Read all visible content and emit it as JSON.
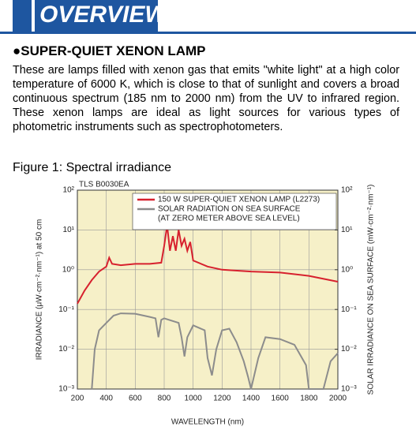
{
  "header": {
    "title": "OVERVIEW"
  },
  "section": {
    "heading": "●SUPER-QUIET XENON LAMP",
    "paragraph": "These are lamps filled with xenon gas that emits \"white light\" at a high color temperature of 6000 K, which is close to that of sunlight and covers a broad continuous spectrum (185 nm to 2000 nm) from the UV to infrared region. These xenon lamps are ideal as light sources for various types of photometric instruments such as spectrophotometers."
  },
  "figure": {
    "caption": "Figure 1: Spectral irradiance"
  },
  "chart_data": {
    "type": "line",
    "code": "TLS B0030EA",
    "x_label": "WAVELENGTH (nm)",
    "y_label": "IRRADIANCE (μW·cm⁻²·nm⁻¹) at 50 cm",
    "y2_label": "SOLAR IRRADIANCE ON SEA SURFACE (mW·cm⁻²·nm⁻¹)",
    "xlim": [
      200,
      2000
    ],
    "xticks": [
      200,
      400,
      600,
      800,
      1000,
      1200,
      1400,
      1600,
      1800,
      2000
    ],
    "ylim": [
      0.001,
      100
    ],
    "y_log": true,
    "yticks": [
      {
        "value": 100,
        "label": "10²"
      },
      {
        "value": 10,
        "label": "10¹"
      },
      {
        "value": 1,
        "label": "10⁰"
      },
      {
        "value": 0.1,
        "label": "10⁻¹"
      },
      {
        "value": 0.01,
        "label": "10⁻²"
      },
      {
        "value": 0.001,
        "label": "10⁻³"
      }
    ],
    "y2lim": [
      0.001,
      100
    ],
    "y2ticks": [
      {
        "value": 100,
        "label": "10²"
      },
      {
        "value": 10,
        "label": "10¹"
      },
      {
        "value": 1,
        "label": "10⁰"
      },
      {
        "value": 0.1,
        "label": "10⁻¹"
      },
      {
        "value": 0.01,
        "label": "10⁻²"
      },
      {
        "value": 0.001,
        "label": "10⁻³"
      }
    ],
    "grid": true,
    "background": "#f6f0c8",
    "series": [
      {
        "name": "150 W SUPER-QUIET XENON LAMP (L2273)",
        "color": "#d7212e",
        "x": [
          200,
          250,
          300,
          350,
          400,
          420,
          440,
          500,
          600,
          700,
          780,
          800,
          820,
          840,
          860,
          880,
          900,
          920,
          940,
          960,
          980,
          1000,
          1100,
          1200,
          1400,
          1600,
          1800,
          2000
        ],
        "values": [
          0.14,
          0.3,
          0.55,
          0.9,
          1.2,
          2,
          1.4,
          1.3,
          1.4,
          1.4,
          1.5,
          4,
          13,
          3,
          7,
          3,
          10,
          4,
          6,
          3,
          5,
          1.7,
          1.2,
          1,
          0.9,
          0.85,
          0.7,
          0.5
        ]
      },
      {
        "name": "SOLAR RADIATION ON SEA SURFACE",
        "color": "#8c8c8c",
        "axis": "y2",
        "x": [
          300,
          320,
          350,
          400,
          450,
          500,
          600,
          700,
          740,
          760,
          780,
          800,
          900,
          920,
          940,
          960,
          1000,
          1080,
          1100,
          1130,
          1160,
          1200,
          1250,
          1300,
          1350,
          1380,
          1400,
          1450,
          1500,
          1600,
          1700,
          1780,
          1800,
          1850,
          1900,
          1950,
          2000
        ],
        "values": [
          0.001,
          0.01,
          0.03,
          0.046,
          0.07,
          0.08,
          0.078,
          0.065,
          0.06,
          0.02,
          0.055,
          0.06,
          0.046,
          0.02,
          0.0066,
          0.02,
          0.04,
          0.03,
          0.006,
          0.0022,
          0.01,
          0.03,
          0.033,
          0.015,
          0.005,
          0.002,
          0.001,
          0.006,
          0.02,
          0.018,
          0.013,
          0.004,
          0.001,
          0.001,
          0.001,
          0.005,
          0.008
        ]
      }
    ],
    "legend_note": "(AT ZERO METER ABOVE SEA LEVEL)"
  }
}
